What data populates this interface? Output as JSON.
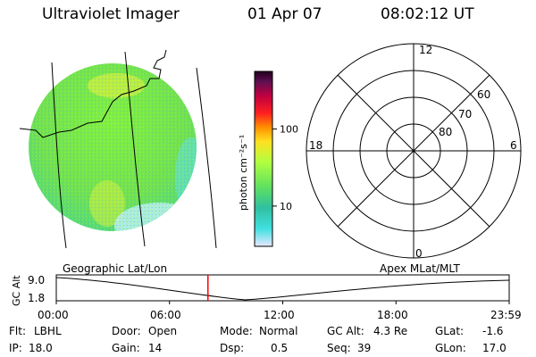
{
  "header": {
    "instrument": "Ultraviolet Imager",
    "date": "01 Apr 07",
    "time": "08:02:12 UT"
  },
  "colorbar": {
    "unit_label": "photon cm⁻²s⁻¹",
    "ticks": [
      "100",
      "10"
    ],
    "tick_values": [
      100,
      10
    ],
    "range": [
      3,
      560
    ],
    "scale": "log",
    "colors": [
      "#d8d8ff",
      "#30e0e0",
      "#30c0a0",
      "#60e060",
      "#a0ff40",
      "#e0ff40",
      "#ffe020",
      "#ff9000",
      "#ff2020",
      "#c00040",
      "#801060",
      "#400040"
    ]
  },
  "polar_plot": {
    "top_label": "12",
    "bottom_label": "0",
    "left_label": "18",
    "right_label": "6",
    "ring_labels": [
      "60",
      "70",
      "80"
    ]
  },
  "timeline": {
    "left_label": "Geographic Lat/Lon",
    "right_label": "Apex MLat/MLT",
    "axis_title": "GC Alt",
    "y_ticks": [
      "9.0",
      "1.8"
    ],
    "x_ticks": [
      "00:00",
      "06:00",
      "12:00",
      "18:00",
      "23:59"
    ],
    "current_time_hours": 8.037,
    "marker_color": "#ff0000"
  },
  "footer": {
    "flt_label": "Flt:",
    "flt_value": "LBHL",
    "ip_label": "IP:",
    "ip_value": "18.0",
    "door_label": "Door:",
    "door_value": "Open",
    "gain_label": "Gain:",
    "gain_value": "14",
    "mode_label": "Mode:",
    "mode_value": "Normal",
    "dsp_label": "Dsp:",
    "dsp_value": "0.5",
    "gcalt_label": "GC Alt:",
    "gcalt_value": "4.3 Re",
    "seq_label": "Seq:",
    "seq_value": "39",
    "glat_label": "GLat:",
    "glat_value": "-1.6",
    "glon_label": "GLon:",
    "glon_value": "17.0"
  }
}
